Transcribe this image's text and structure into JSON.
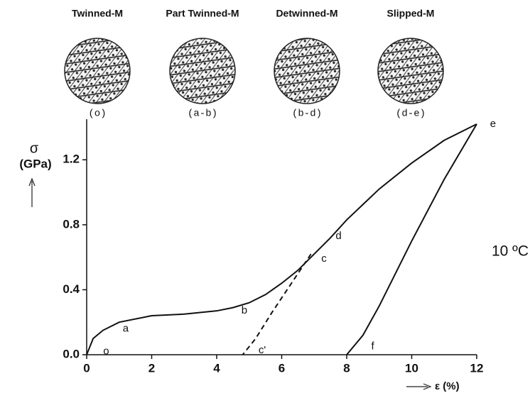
{
  "chart_data": {
    "type": "line",
    "insets": [
      {
        "title": "Twinned-M",
        "caption": "(o)"
      },
      {
        "title": "Part Twinned-M",
        "caption": "(a-b)"
      },
      {
        "title": "Detwinned-M",
        "caption": "(b-d)"
      },
      {
        "title": "Slipped-M",
        "caption": "(d-e)"
      }
    ],
    "y_label": [
      "σ",
      "(GPa)"
    ],
    "x_label": "ε (%)",
    "temperature": "10 ºC",
    "xlim": [
      0,
      12
    ],
    "ylim": [
      0,
      1.45
    ],
    "xticks": [
      0,
      2,
      4,
      6,
      8,
      10,
      12
    ],
    "yticks": [
      {
        "value": 0,
        "label": "0.0"
      },
      0.4,
      0.8,
      1.2
    ],
    "series": [
      {
        "color": "#111111",
        "dash": false,
        "x": [
          0,
          0.2,
          0.5,
          1,
          2,
          3,
          4,
          4.5,
          5,
          5.5,
          6,
          6.5,
          7,
          7.5,
          8,
          9,
          10,
          11,
          12
        ],
        "values": [
          0,
          0.1,
          0.15,
          0.2,
          0.24,
          0.25,
          0.27,
          0.29,
          0.32,
          0.37,
          0.44,
          0.52,
          0.62,
          0.72,
          0.83,
          1.02,
          1.18,
          1.32,
          1.42
        ]
      },
      {
        "color": "#111111",
        "dash": true,
        "x": [
          6.9,
          6.3,
          5.7,
          5.2,
          4.8
        ],
        "values": [
          0.62,
          0.44,
          0.26,
          0.1,
          0
        ]
      },
      {
        "color": "#111111",
        "dash": false,
        "x": [
          8,
          8.5,
          9,
          10,
          11,
          12
        ],
        "values": [
          0,
          0.12,
          0.3,
          0.7,
          1.08,
          1.42
        ]
      }
    ],
    "point_labels": [
      "o",
      "a",
      "b",
      "c",
      "d",
      "e",
      "c'",
      "f"
    ]
  }
}
